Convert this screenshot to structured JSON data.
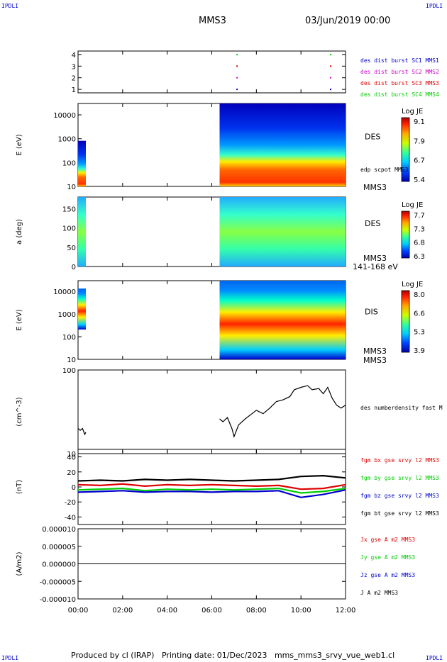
{
  "corner": {
    "tl": "IPDLI",
    "tr": "IPDLI",
    "bl": "IPDLI",
    "br": "IPDLI"
  },
  "header": {
    "title": "MMS3",
    "date": "03/Jun/2019 00:00"
  },
  "footer": {
    "text": "Produced by cl (IRAP)   Printing date: 01/Dec/2023   mms_mms3_srvy_vue_web1.cl"
  },
  "colors": {
    "blue": "#0000cc",
    "magenta": "#cc00cc",
    "red": "#dd0000",
    "green": "#00cc00",
    "black": "#000000"
  },
  "chart_data": [
    {
      "type": "scatter",
      "id": "p1",
      "ylim": [
        0.7,
        4.3
      ],
      "yticks": [
        "1",
        "2",
        "3",
        "4"
      ],
      "series": [
        {
          "name": "des dist burst SC1 MMS1",
          "color": "#0000cc",
          "points": [
            [
              7.1,
              1
            ],
            [
              11.3,
              1
            ]
          ]
        },
        {
          "name": "des dist burst SC2 MMS2",
          "color": "#cc00cc",
          "points": [
            [
              7.1,
              2
            ],
            [
              11.3,
              2
            ]
          ]
        },
        {
          "name": "des dist burst SC3 MMS3",
          "color": "#dd0000",
          "points": [
            [
              7.1,
              3
            ],
            [
              11.3,
              3
            ]
          ]
        },
        {
          "name": "des dist burst SC4 MMS4",
          "color": "#00cc00",
          "points": [
            [
              7.1,
              4
            ],
            [
              11.3,
              4
            ]
          ]
        }
      ]
    },
    {
      "type": "heatmap",
      "id": "p2",
      "ylabel": "E (eV)",
      "yscale": "log",
      "ylim": [
        10,
        30000
      ],
      "yticks": [
        "10",
        "100",
        "1000",
        "10000"
      ],
      "label1": "DES",
      "label2": "edp scpot MMS3",
      "label3": "MMS3",
      "colorbar": {
        "title": "Log JE",
        "ticks": [
          "9.1",
          "7.9",
          "6.7",
          "5.4"
        ]
      },
      "blocks": [
        [
          0.0,
          0.35
        ],
        [
          6.35,
          12.0
        ]
      ]
    },
    {
      "type": "heatmap",
      "id": "p3",
      "ylabel": "a (deg)",
      "ylim": [
        0,
        180
      ],
      "yticks": [
        "0",
        "50",
        "100",
        "150"
      ],
      "label1": "DES",
      "label2": "MMS3",
      "label3": "141-168 eV",
      "colorbar": {
        "title": "Log JE",
        "ticks": [
          "7.7",
          "7.3",
          "6.8",
          "6.3"
        ]
      },
      "blocks": [
        [
          0.0,
          0.35
        ],
        [
          6.35,
          12.0
        ]
      ]
    },
    {
      "type": "heatmap",
      "id": "p4",
      "ylabel": "E (eV)",
      "yscale": "log",
      "ylim": [
        10,
        30000
      ],
      "yticks": [
        "10",
        "100",
        "1000",
        "10000"
      ],
      "label1": "DIS",
      "label2": "MMS3",
      "colorbar": {
        "title": "Log JE",
        "ticks": [
          "8.0",
          "6.6",
          "5.3",
          "3.9"
        ]
      },
      "blocks": [
        [
          0.0,
          0.35
        ],
        [
          6.35,
          12.0
        ]
      ]
    },
    {
      "type": "line",
      "id": "p5",
      "ylabel": "(cm^-3)",
      "yscale": "log",
      "ylim": [
        10,
        100
      ],
      "yticks": [
        "10",
        "100"
      ],
      "series": [
        {
          "name": "des numberdensity fast M",
          "color": "#000000",
          "x": [
            0.0,
            0.1,
            0.2,
            0.3,
            0.35,
            6.35,
            6.5,
            6.7,
            6.9,
            7.0,
            7.2,
            7.5,
            7.8,
            8.0,
            8.3,
            8.6,
            8.9,
            9.2,
            9.5,
            9.7,
            10.0,
            10.3,
            10.5,
            10.8,
            11.0,
            11.2,
            11.4,
            11.6,
            11.8,
            12.0
          ],
          "y": [
            20,
            19,
            20,
            17,
            18,
            26,
            24,
            27,
            20,
            16,
            22,
            26,
            30,
            33,
            30,
            35,
            42,
            44,
            48,
            58,
            62,
            65,
            58,
            60,
            52,
            62,
            46,
            38,
            35,
            38
          ]
        }
      ]
    },
    {
      "type": "line",
      "id": "p6",
      "ylabel": "(nT)",
      "ylim": [
        -50,
        50
      ],
      "yticks": [
        "-40",
        "-20",
        "0",
        "20",
        "40"
      ],
      "series": [
        {
          "name": "fgm bx gse srvy l2 MMS3",
          "color": "#dd0000",
          "x": [
            0,
            1,
            2,
            3,
            4,
            5,
            6,
            7,
            8,
            9,
            10,
            11,
            12
          ],
          "y": [
            3,
            2,
            4,
            1,
            3,
            2,
            3,
            2,
            1,
            2,
            -3,
            -2,
            3
          ]
        },
        {
          "name": "fgm by gse srvy l2 MMS3",
          "color": "#00cc00",
          "x": [
            0,
            1,
            2,
            3,
            4,
            5,
            6,
            7,
            8,
            9,
            10,
            11,
            12
          ],
          "y": [
            -4,
            -3,
            -2,
            -5,
            -3,
            -4,
            -3,
            -4,
            -3,
            -2,
            -8,
            -6,
            -2
          ]
        },
        {
          "name": "fgm bz gse srvy l2 MMS3",
          "color": "#0000cc",
          "x": [
            0,
            1,
            2,
            3,
            4,
            5,
            6,
            7,
            8,
            9,
            10,
            11,
            12
          ],
          "y": [
            -7,
            -6,
            -5,
            -7,
            -6,
            -6,
            -7,
            -6,
            -6,
            -5,
            -14,
            -10,
            -4
          ]
        },
        {
          "name": "fgm bt gse srvy l2 MMS3",
          "color": "#000000",
          "x": [
            0,
            1,
            2,
            3,
            4,
            5,
            6,
            7,
            8,
            9,
            10,
            11,
            12
          ],
          "y": [
            8,
            9,
            8,
            10,
            9,
            10,
            9,
            8,
            9,
            10,
            14,
            15,
            12
          ]
        }
      ]
    },
    {
      "type": "line",
      "id": "p7",
      "ylabel": "(A/m2)",
      "ylim": [
        -1e-05,
        1e-05
      ],
      "yticks": [
        "-0.000010",
        "-0.000005",
        "0.000000",
        "0.000005",
        "0.000010"
      ],
      "xticks": [
        "00:00",
        "02:00",
        "04:00",
        "06:00",
        "08:00",
        "10:00",
        "12:00"
      ],
      "xlim": [
        0,
        12
      ],
      "series": [
        {
          "name": "Jx gse A m2 MMS3",
          "color": "#dd0000"
        },
        {
          "name": "Jy gse A m2 MMS3",
          "color": "#00cc00"
        },
        {
          "name": "Jz gse A m2 MMS3",
          "color": "#0000cc"
        },
        {
          "name": "J A m2 MMS3",
          "color": "#000000"
        }
      ]
    }
  ]
}
